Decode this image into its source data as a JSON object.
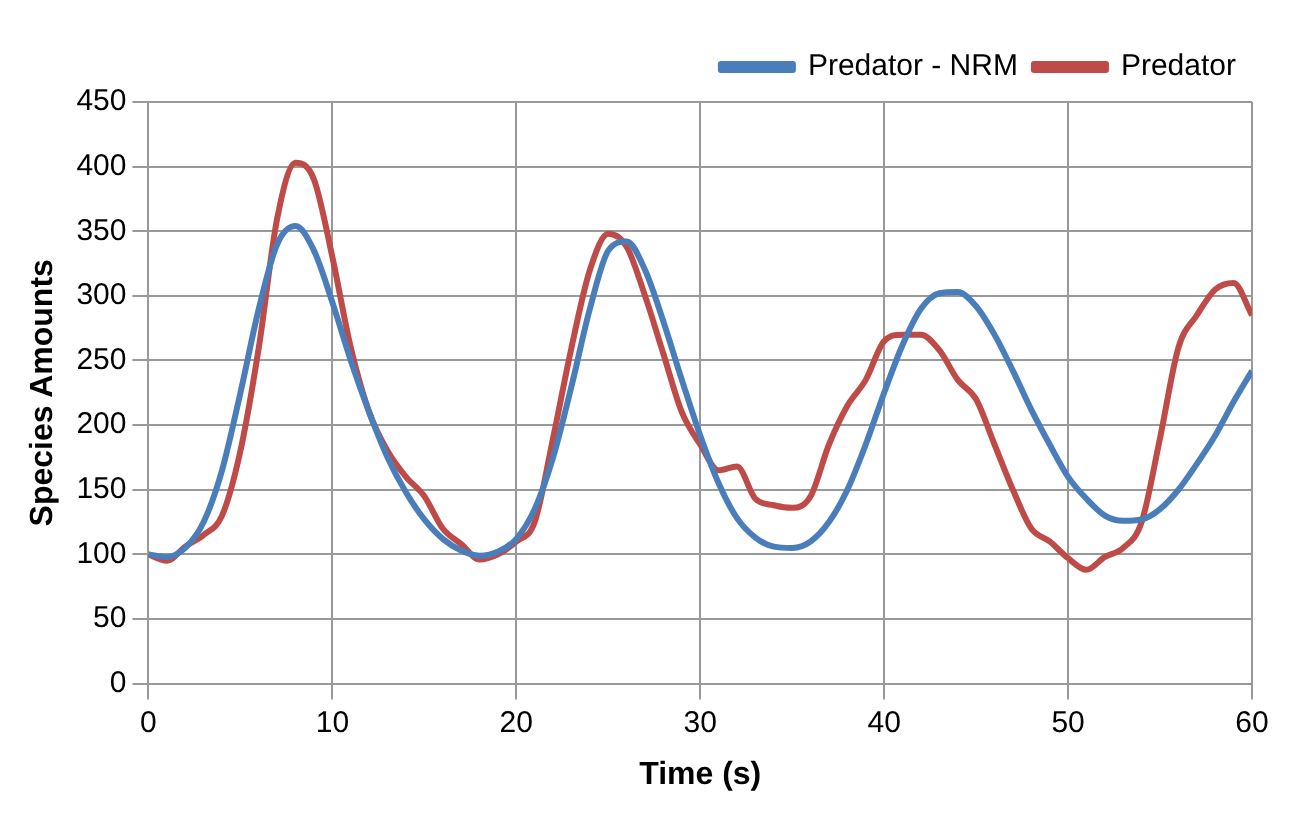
{
  "chart_data": {
    "type": "line",
    "xlabel": "Time (s)",
    "ylabel": "Species Amounts",
    "x": [
      0,
      1,
      2,
      3,
      4,
      5,
      6,
      7,
      8,
      9,
      10,
      11,
      12,
      13,
      14,
      15,
      16,
      17,
      18,
      19,
      20,
      21,
      22,
      23,
      24,
      25,
      26,
      27,
      28,
      29,
      30,
      31,
      32,
      33,
      34,
      35,
      36,
      37,
      38,
      39,
      40,
      41,
      42,
      43,
      44,
      45,
      46,
      47,
      48,
      49,
      50,
      51,
      52,
      53,
      54,
      55,
      56,
      57,
      58,
      59,
      60
    ],
    "series": [
      {
        "name": "Predator - NRM",
        "color": "#4a7ebb",
        "values": [
          100,
          98,
          105,
          125,
          165,
          225,
          290,
          340,
          354,
          335,
          295,
          250,
          210,
          175,
          148,
          127,
          112,
          103,
          99,
          102,
          112,
          135,
          175,
          230,
          290,
          335,
          342,
          320,
          280,
          235,
          192,
          155,
          128,
          113,
          106,
          105,
          110,
          125,
          150,
          185,
          225,
          262,
          290,
          302,
          303,
          292,
          270,
          242,
          212,
          185,
          160,
          143,
          130,
          126,
          127,
          135,
          150,
          170,
          192,
          218,
          242
        ]
      },
      {
        "name": "Predator",
        "color": "#be4b48",
        "values": [
          100,
          95,
          106,
          115,
          130,
          180,
          260,
          360,
          403,
          390,
          330,
          260,
          210,
          180,
          160,
          145,
          120,
          108,
          96,
          100,
          110,
          125,
          190,
          260,
          320,
          348,
          338,
          300,
          255,
          210,
          185,
          165,
          168,
          143,
          138,
          136,
          145,
          185,
          215,
          235,
          265,
          270,
          270,
          258,
          235,
          220,
          185,
          150,
          120,
          110,
          97,
          88,
          98,
          105,
          125,
          190,
          260,
          285,
          305,
          310,
          285
        ]
      }
    ],
    "xlim": [
      0,
      60
    ],
    "xticks": [
      0,
      10,
      20,
      30,
      40,
      50,
      60
    ],
    "ylim": [
      0,
      450
    ],
    "yticks": [
      0,
      50,
      100,
      150,
      200,
      250,
      300,
      350,
      400,
      450
    ],
    "grid": true,
    "legend": "top right",
    "marker": "none",
    "line_style": "solid"
  }
}
